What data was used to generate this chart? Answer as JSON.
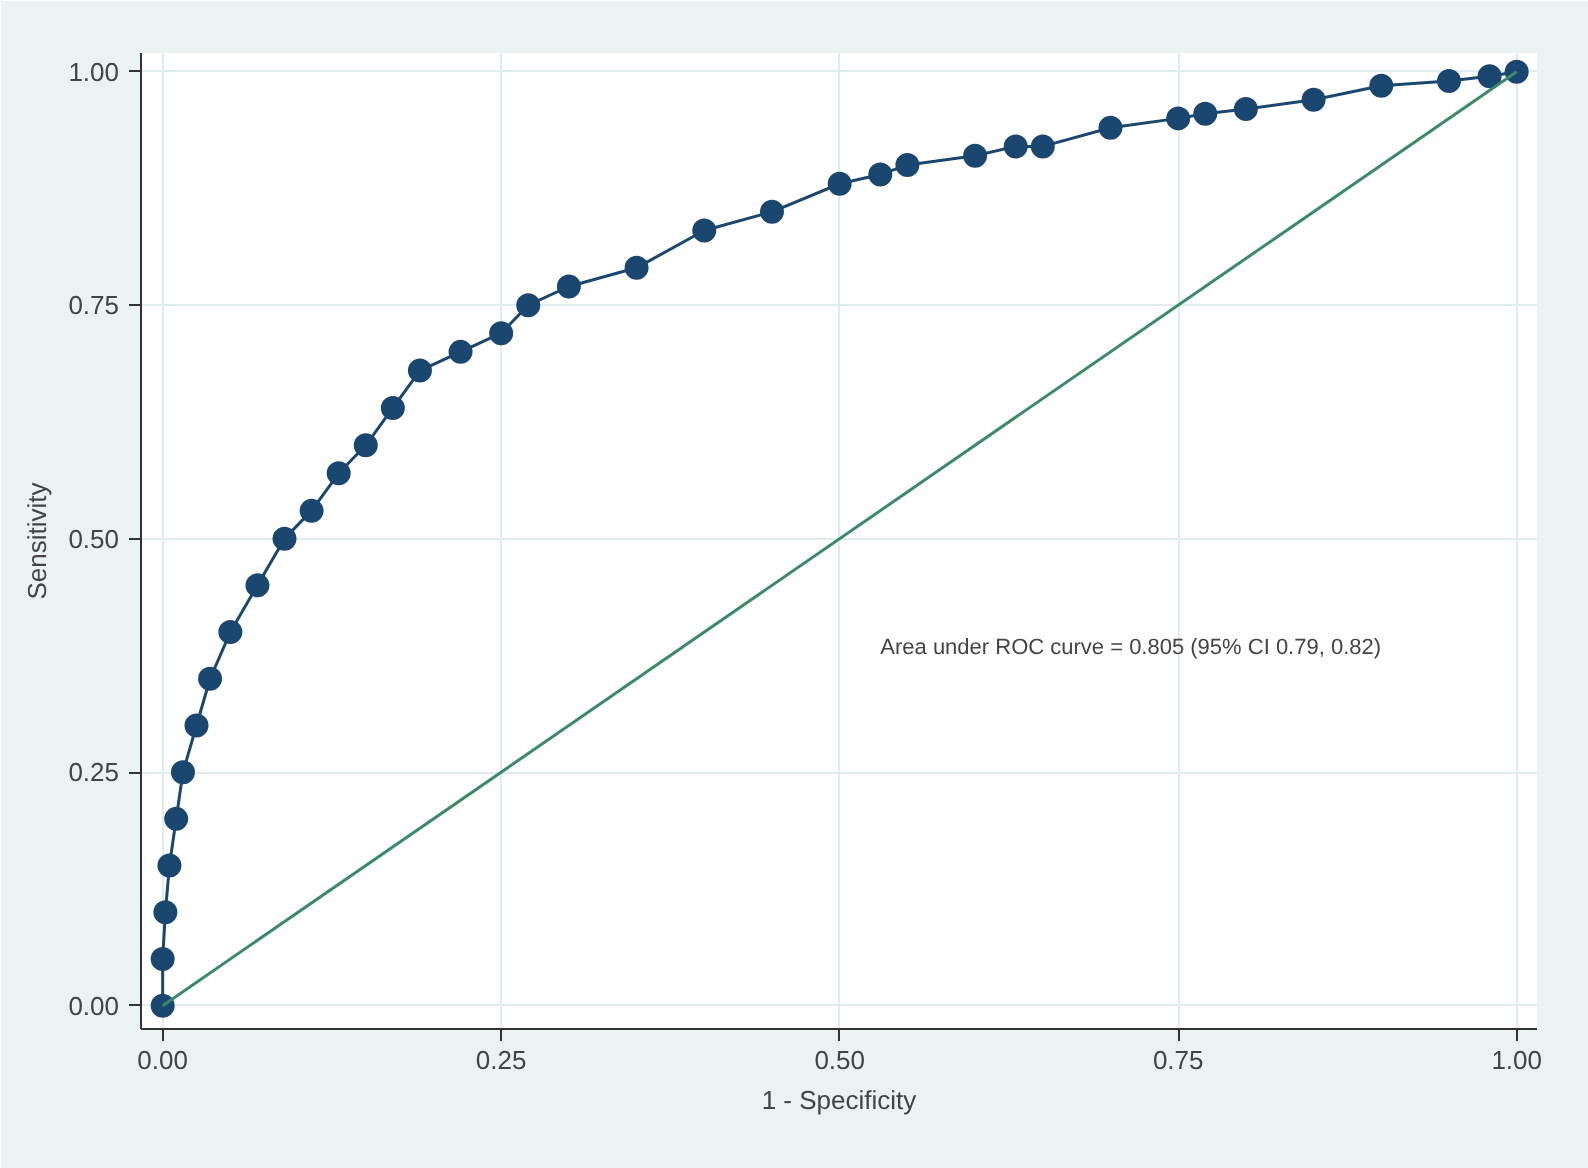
{
  "chart_data": {
    "type": "line",
    "xlabel": "1 - Specificity",
    "ylabel": "Sensitivity",
    "xlim": [
      -0.016,
      1.015
    ],
    "ylim": [
      -0.025,
      1.02
    ],
    "xticks": [
      {
        "value": 0,
        "label": "0.00"
      },
      {
        "value": 0.25,
        "label": "0.25"
      },
      {
        "value": 0.5,
        "label": "0.50"
      },
      {
        "value": 0.75,
        "label": "0.75"
      },
      {
        "value": 1,
        "label": "1.00"
      }
    ],
    "yticks": [
      {
        "value": 0,
        "label": "0.00"
      },
      {
        "value": 0.25,
        "label": "0.25"
      },
      {
        "value": 0.5,
        "label": "0.50"
      },
      {
        "value": 0.75,
        "label": "0.75"
      },
      {
        "value": 1,
        "label": "1.00"
      }
    ],
    "grid": true,
    "series": [
      {
        "marker": "circle",
        "color": "#1a476f",
        "x": [
          0,
          0,
          0.002,
          0.005,
          0.01,
          0.015,
          0.025,
          0.035,
          0.05,
          0.07,
          0.09,
          0.11,
          0.13,
          0.15,
          0.17,
          0.19,
          0.22,
          0.25,
          0.27,
          0.3,
          0.35,
          0.4,
          0.45,
          0.5,
          0.53,
          0.55,
          0.6,
          0.63,
          0.65,
          0.7,
          0.75,
          0.77,
          0.8,
          0.85,
          0.9,
          0.95,
          0.98,
          1
        ],
        "values": [
          0,
          0.05,
          0.1,
          0.15,
          0.2,
          0.25,
          0.3,
          0.35,
          0.4,
          0.45,
          0.5,
          0.53,
          0.57,
          0.6,
          0.64,
          0.68,
          0.7,
          0.72,
          0.75,
          0.77,
          0.79,
          0.83,
          0.85,
          0.88,
          0.89,
          0.9,
          0.91,
          0.92,
          0.92,
          0.94,
          0.95,
          0.955,
          0.96,
          0.97,
          0.985,
          0.99,
          0.995,
          1
        ]
      },
      {
        "marker": "none",
        "color": "#3a8a6a",
        "x": [
          0,
          1
        ],
        "values": [
          0,
          1
        ]
      }
    ],
    "annotations": [
      "Area under ROC curve = 0.805 (95% CI 0.79, 0.82)"
    ]
  }
}
